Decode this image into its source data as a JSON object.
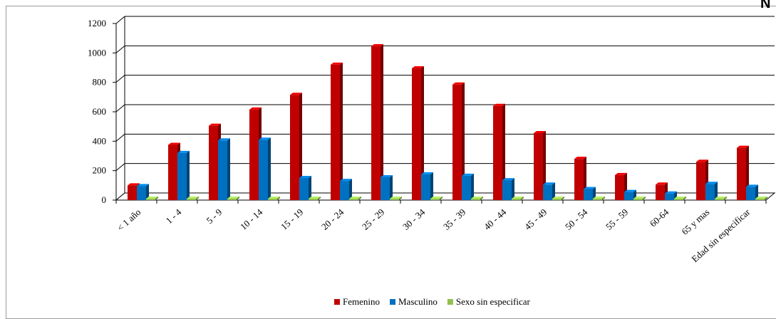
{
  "corner_text": "N",
  "chart_data": {
    "type": "bar",
    "title": "",
    "xlabel": "",
    "ylabel": "",
    "ylim": [
      0,
      1200
    ],
    "yticks": [
      0,
      200,
      400,
      600,
      800,
      1000,
      1200
    ],
    "grid": true,
    "legend_position": "bottom",
    "categories": [
      "< 1 año",
      "1 - 4",
      "5 - 9",
      "10 - 14",
      "15 - 19",
      "20 - 24",
      "25 - 29",
      "30 - 34",
      "35 - 39",
      "40 - 44",
      "45 - 49",
      "50 - 54",
      "55 - 59",
      "60-64",
      "65 y mas",
      "Edad sin especificar"
    ],
    "series": [
      {
        "name": "Femenino",
        "color": "#c00000",
        "values": [
          100,
          375,
          505,
          615,
          715,
          920,
          1045,
          895,
          785,
          640,
          455,
          280,
          170,
          105,
          260,
          355
        ]
      },
      {
        "name": "Masculino",
        "color": "#0070c0",
        "values": [
          95,
          320,
          405,
          410,
          150,
          130,
          155,
          175,
          165,
          135,
          105,
          75,
          55,
          45,
          110,
          90
        ]
      },
      {
        "name": "Sexo sin especificar",
        "color": "#92c050",
        "values": [
          5,
          3,
          2,
          3,
          3,
          0,
          0,
          0,
          0,
          0,
          0,
          0,
          0,
          0,
          0,
          6
        ]
      }
    ]
  }
}
